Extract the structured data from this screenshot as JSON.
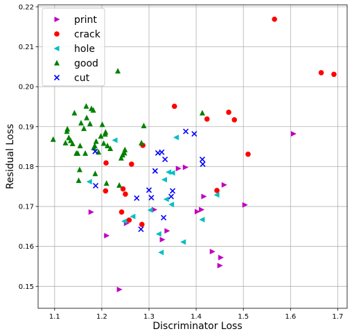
{
  "chart_data": {
    "type": "scatter",
    "title": "",
    "xlabel": "Discriminator Loss",
    "ylabel": "Residual Loss",
    "xlim": [
      1.065,
      1.72
    ],
    "ylim": [
      0.1445,
      0.2205
    ],
    "xticks": [
      "1.1",
      "1.2",
      "1.3",
      "1.4",
      "1.5",
      "1.6",
      "1.7"
    ],
    "yticks": [
      "0.15",
      "0.16",
      "0.17",
      "0.18",
      "0.19",
      "0.20",
      "0.21",
      "0.22"
    ],
    "grid": true,
    "legend_position": "top-left",
    "series": [
      {
        "name": "print",
        "marker": "triangle-right",
        "color": "#bf00bf",
        "points": [
          [
            1.177,
            0.1686
          ],
          [
            1.21,
            0.1627
          ],
          [
            1.237,
            0.1492
          ],
          [
            1.252,
            0.1658
          ],
          [
            1.311,
            0.1692
          ],
          [
            1.328,
            0.1617
          ],
          [
            1.338,
            0.1639
          ],
          [
            1.362,
            0.1795
          ],
          [
            1.377,
            0.1798
          ],
          [
            1.402,
            0.1687
          ],
          [
            1.411,
            0.1692
          ],
          [
            1.416,
            0.1725
          ],
          [
            1.434,
            0.1587
          ],
          [
            1.45,
            0.1552
          ],
          [
            1.452,
            0.1572
          ],
          [
            1.459,
            0.1754
          ],
          [
            1.503,
            0.1704
          ],
          [
            1.606,
            0.1882
          ]
        ]
      },
      {
        "name": "crack",
        "marker": "circle",
        "color": "#ff0000",
        "points": [
          [
            1.209,
            0.1809
          ],
          [
            1.208,
            0.1739
          ],
          [
            1.242,
            0.1686
          ],
          [
            1.245,
            0.1744
          ],
          [
            1.25,
            0.1731
          ],
          [
            1.258,
            0.1666
          ],
          [
            1.263,
            0.1806
          ],
          [
            1.287,
            0.1853
          ],
          [
            1.285,
            0.1655
          ],
          [
            1.354,
            0.1951
          ],
          [
            1.423,
            0.1919
          ],
          [
            1.469,
            0.1936
          ],
          [
            1.481,
            0.1917
          ],
          [
            1.444,
            0.174
          ],
          [
            1.51,
            0.1831
          ],
          [
            1.566,
            0.2169
          ],
          [
            1.665,
            0.2035
          ],
          [
            1.692,
            0.2031
          ]
        ]
      },
      {
        "name": "hole",
        "marker": "triangle-left",
        "color": "#00bfbf",
        "points": [
          [
            1.174,
            0.1762
          ],
          [
            1.228,
            0.1866
          ],
          [
            1.248,
            0.1663
          ],
          [
            1.266,
            0.1675
          ],
          [
            1.303,
            0.1691
          ],
          [
            1.321,
            0.1631
          ],
          [
            1.326,
            0.1585
          ],
          [
            1.337,
            0.1718
          ],
          [
            1.333,
            0.1767
          ],
          [
            1.342,
            0.1786
          ],
          [
            1.348,
            0.1705
          ],
          [
            1.35,
            0.1784
          ],
          [
            1.358,
            0.1873
          ],
          [
            1.373,
            0.1611
          ],
          [
            1.413,
            0.1667
          ],
          [
            1.444,
            0.1729
          ]
        ]
      },
      {
        "name": "good",
        "marker": "triangle-up",
        "color": "#008000",
        "points": [
          [
            1.097,
            0.1868
          ],
          [
            1.123,
            0.1859
          ],
          [
            1.126,
            0.1888
          ],
          [
            1.127,
            0.1894
          ],
          [
            1.13,
            0.1872
          ],
          [
            1.134,
            0.1865
          ],
          [
            1.138,
            0.1857
          ],
          [
            1.142,
            0.1934
          ],
          [
            1.146,
            0.1833
          ],
          [
            1.149,
            0.1833
          ],
          [
            1.151,
            0.1765
          ],
          [
            1.153,
            0.1792
          ],
          [
            1.154,
            0.1852
          ],
          [
            1.156,
            0.1909
          ],
          [
            1.162,
            0.1895
          ],
          [
            1.165,
            0.1833
          ],
          [
            1.167,
            0.1951
          ],
          [
            1.168,
            0.1922
          ],
          [
            1.175,
            0.1907
          ],
          [
            1.178,
            0.1945
          ],
          [
            1.182,
            0.1941
          ],
          [
            1.183,
            0.1847
          ],
          [
            1.185,
            0.1852
          ],
          [
            1.186,
            0.1782
          ],
          [
            1.188,
            0.1863
          ],
          [
            1.193,
            0.1836
          ],
          [
            1.198,
            0.1876
          ],
          [
            1.201,
            0.1905
          ],
          [
            1.204,
            0.1858
          ],
          [
            1.207,
            0.1881
          ],
          [
            1.208,
            0.1886
          ],
          [
            1.21,
            0.1758
          ],
          [
            1.212,
            0.1852
          ],
          [
            1.218,
            0.1845
          ],
          [
            1.234,
            0.2039
          ],
          [
            1.237,
            0.1753
          ],
          [
            1.241,
            0.1821
          ],
          [
            1.244,
            0.1829
          ],
          [
            1.248,
            0.1834
          ],
          [
            1.249,
            0.1842
          ],
          [
            1.284,
            0.1859
          ],
          [
            1.289,
            0.1902
          ],
          [
            1.413,
            0.1934
          ]
        ]
      },
      {
        "name": "cut",
        "marker": "x",
        "color": "#0000ff",
        "points": [
          [
            1.186,
            0.1838
          ],
          [
            1.187,
            0.1752
          ],
          [
            1.274,
            0.1721
          ],
          [
            1.283,
            0.1643
          ],
          [
            1.3,
            0.1741
          ],
          [
            1.305,
            0.1722
          ],
          [
            1.313,
            0.1789
          ],
          [
            1.319,
            0.1834
          ],
          [
            1.327,
            0.1836
          ],
          [
            1.331,
            0.1672
          ],
          [
            1.334,
            0.1818
          ],
          [
            1.347,
            0.1725
          ],
          [
            1.35,
            0.1739
          ],
          [
            1.378,
            0.1888
          ],
          [
            1.396,
            0.1882
          ],
          [
            1.413,
            0.1818
          ],
          [
            1.414,
            0.1806
          ]
        ]
      }
    ]
  }
}
